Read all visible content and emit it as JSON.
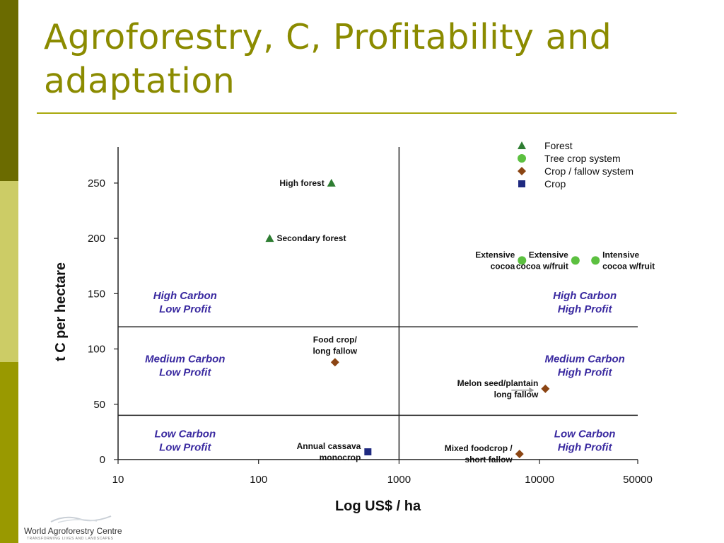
{
  "slide": {
    "title": "Agroforestry, C, Profitability and adaptation"
  },
  "logo": {
    "name": "World Agroforestry Centre",
    "tagline": "TRANSFORMING LIVES AND LANDSCAPES"
  },
  "colors": {
    "accent_dark": "#6b6b00",
    "accent_light": "#cccc66",
    "accent_mid": "#999900",
    "title": "#8b8b00",
    "quadrant_label": "#3a2aa0",
    "forest": "#2e7d32",
    "tree_crop": "#5cc040",
    "crop_fallow": "#8b4513",
    "crop": "#1f2a80"
  },
  "chart_data": {
    "type": "scatter",
    "xlabel": "Log US$ / ha",
    "ylabel": "t C per hectare",
    "x_scale": "log",
    "xlim": [
      10,
      50000
    ],
    "ylim": [
      0,
      280
    ],
    "x_ticks": [
      10,
      100,
      1000,
      10000,
      50000
    ],
    "x_tick_labels": [
      "10",
      "100",
      "1000",
      "10000",
      "50000"
    ],
    "y_ticks": [
      0,
      50,
      100,
      150,
      200,
      250
    ],
    "y_tick_labels": [
      "0",
      "50",
      "100",
      "150",
      "200",
      "250"
    ],
    "dividers": {
      "x": [
        1000
      ],
      "y": [
        40,
        120
      ]
    },
    "legend": {
      "position": "top-right",
      "entries": [
        {
          "name": "Forest",
          "marker": "triangle",
          "color": "#2e7d32"
        },
        {
          "name": "Tree crop system",
          "marker": "circle",
          "color": "#5cc040"
        },
        {
          "name": "Crop / fallow system",
          "marker": "diamond",
          "color": "#8b4513"
        },
        {
          "name": "Crop",
          "marker": "square",
          "color": "#1f2a80"
        }
      ]
    },
    "series": [
      {
        "name": "Forest",
        "marker": "triangle",
        "color": "#2e7d32",
        "points": [
          {
            "x": 330,
            "y": 250,
            "label": [
              "High forest"
            ],
            "anchor": "end"
          },
          {
            "x": 120,
            "y": 200,
            "label": [
              "Secondary forest"
            ],
            "anchor": "start"
          }
        ]
      },
      {
        "name": "Tree crop system",
        "marker": "circle",
        "color": "#5cc040",
        "points": [
          {
            "x": 7500,
            "y": 180,
            "label": [
              "Extensive",
              "cocoa"
            ],
            "anchor": "end"
          },
          {
            "x": 18000,
            "y": 180,
            "label": [
              "Extensive",
              "cocoa w/fruit"
            ],
            "anchor": "end"
          },
          {
            "x": 25000,
            "y": 180,
            "label": [
              "Intensive",
              "cocoa w/fruit"
            ],
            "anchor": "start"
          }
        ]
      },
      {
        "name": "Crop / fallow system",
        "marker": "diamond",
        "color": "#8b4513",
        "points": [
          {
            "x": 350,
            "y": 88,
            "label": [
              "Food crop/",
              "long fallow"
            ],
            "anchor": "middle"
          },
          {
            "x": 11000,
            "y": 64,
            "label": [
              "Melon seed/plantain",
              "long fallow"
            ],
            "anchor": "end"
          },
          {
            "x": 7200,
            "y": 5,
            "label": [
              "Mixed foodcrop /",
              "short fallow"
            ],
            "anchor": "end"
          }
        ]
      },
      {
        "name": "Crop",
        "marker": "square",
        "color": "#1f2a80",
        "points": [
          {
            "x": 600,
            "y": 7,
            "label": [
              "Annual cassava",
              "monocrop"
            ],
            "anchor": "end"
          }
        ]
      }
    ],
    "quadrant_labels": [
      {
        "text": [
          "High Carbon",
          "Low Profit"
        ],
        "x": 30,
        "y": 145
      },
      {
        "text": [
          "High Carbon",
          "High Profit"
        ],
        "x": 21000,
        "y": 145
      },
      {
        "text": [
          "Medium Carbon",
          "Low Profit"
        ],
        "x": 30,
        "y": 88
      },
      {
        "text": [
          "Medium Carbon",
          "High Profit"
        ],
        "x": 21000,
        "y": 88
      },
      {
        "text": [
          "Low Carbon",
          "Low Profit"
        ],
        "x": 30,
        "y": 20
      },
      {
        "text": [
          "Low Carbon",
          "High Profit"
        ],
        "x": 21000,
        "y": 20
      }
    ]
  }
}
